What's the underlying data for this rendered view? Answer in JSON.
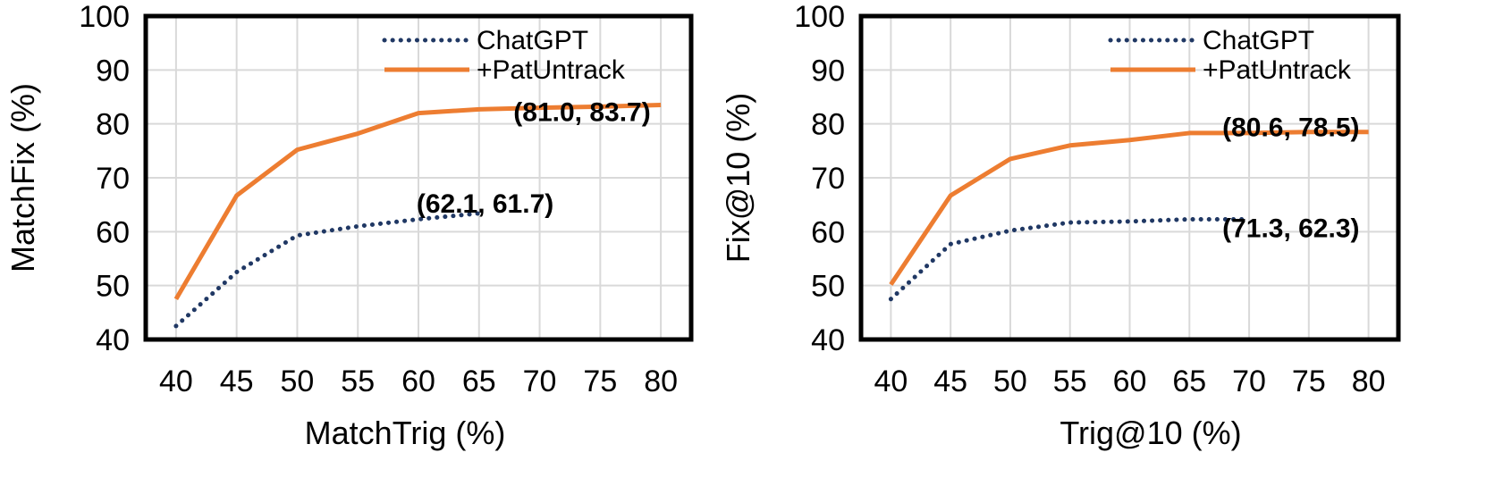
{
  "chart_data": [
    {
      "type": "line",
      "xlabel": "MatchTrig (%)",
      "ylabel": "MatchFix (%)",
      "xlim": [
        37.5,
        82.5
      ],
      "ylim": [
        40,
        100
      ],
      "x_ticks": [
        "40",
        "45",
        "50",
        "55",
        "60",
        "65",
        "70",
        "75",
        "80"
      ],
      "y_ticks": [
        "40",
        "50",
        "60",
        "70",
        "80",
        "90",
        "100"
      ],
      "grid": true,
      "legend_position": "top-right",
      "series": [
        {
          "name": "ChatGPT",
          "style": "dotted",
          "color": "#203864",
          "x": [
            40,
            45,
            50,
            55,
            60,
            65
          ],
          "y": [
            42.5,
            52.5,
            59.3,
            61.0,
            62.3,
            63.4
          ]
        },
        {
          "name": "+PatUntrack",
          "style": "solid",
          "color": "#ED7D31",
          "x": [
            40,
            45,
            50,
            55,
            60,
            65,
            70,
            75,
            80
          ],
          "y": [
            47.5,
            66.7,
            75.2,
            78.2,
            82.0,
            82.7,
            83.0,
            83.2,
            83.5
          ]
        }
      ],
      "annotations": [
        {
          "text": "(81.0, 83.7)",
          "x": 73.5,
          "y": 80.5
        },
        {
          "text": "(62.1, 61.7)",
          "x": 65.5,
          "y": 63.5
        }
      ]
    },
    {
      "type": "line",
      "xlabel": "Trig@10 (%)",
      "ylabel": "Fix@10 (%)",
      "xlim": [
        37.5,
        82.5
      ],
      "ylim": [
        40,
        100
      ],
      "x_ticks": [
        "40",
        "45",
        "50",
        "55",
        "60",
        "65",
        "70",
        "75",
        "80"
      ],
      "y_ticks": [
        "40",
        "50",
        "60",
        "70",
        "80",
        "90",
        "100"
      ],
      "grid": true,
      "legend_position": "top-right",
      "series": [
        {
          "name": "ChatGPT",
          "style": "dotted",
          "color": "#203864",
          "x": [
            40,
            45,
            50,
            55,
            60,
            65,
            70
          ],
          "y": [
            47.5,
            57.7,
            60.2,
            61.7,
            61.9,
            62.3,
            62.3
          ]
        },
        {
          "name": "+PatUntrack",
          "style": "solid",
          "color": "#ED7D31",
          "x": [
            40,
            45,
            50,
            55,
            60,
            65,
            70,
            75,
            80
          ],
          "y": [
            50.2,
            66.7,
            73.5,
            76.0,
            77.0,
            78.3,
            78.3,
            78.5,
            78.5
          ]
        }
      ],
      "annotations": [
        {
          "text": "(80.6, 78.5)",
          "x": 73.5,
          "y": 77.7
        },
        {
          "text": "(71.3, 62.3)",
          "x": 73.5,
          "y": 59.0
        }
      ]
    }
  ]
}
